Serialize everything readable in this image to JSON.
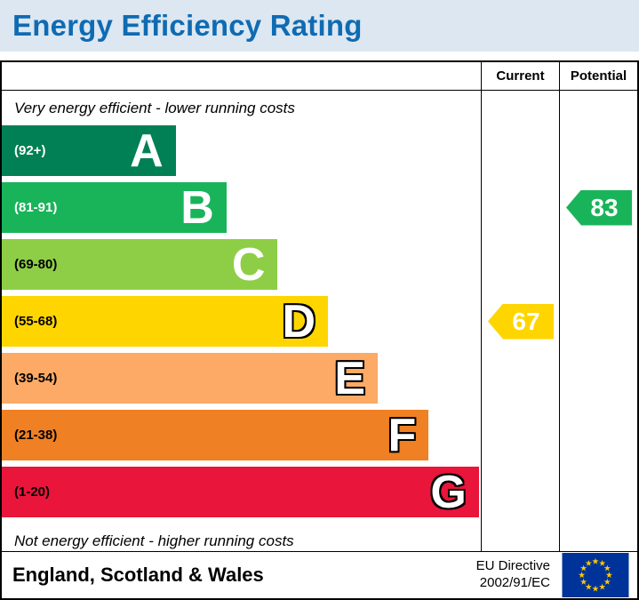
{
  "title": "Energy Efficiency Rating",
  "colors": {
    "title-text": "#0f6bb2",
    "title-bg": "#dce7f1",
    "border": "#000000",
    "flag-bg": "#003399",
    "flag-star": "#ffcc00"
  },
  "header": {
    "current_label": "Current",
    "potential_label": "Potential"
  },
  "notes": {
    "top": "Very energy efficient - lower running costs",
    "bottom": "Not energy efficient - higher running costs"
  },
  "chart_data": {
    "type": "bar",
    "title": "Energy Efficiency Rating",
    "bands": [
      {
        "letter": "A",
        "range": "(92+)",
        "min": 92,
        "max": 100,
        "color": "#008054",
        "label_color": "#ffffff",
        "outline": false,
        "width_pct": 36.3
      },
      {
        "letter": "B",
        "range": "(81-91)",
        "min": 81,
        "max": 91,
        "color": "#19b459",
        "label_color": "#ffffff",
        "outline": false,
        "width_pct": 46.9
      },
      {
        "letter": "C",
        "range": "(69-80)",
        "min": 69,
        "max": 80,
        "color": "#8dce46",
        "label_color": "#000000",
        "outline": false,
        "width_pct": 57.6
      },
      {
        "letter": "D",
        "range": "(55-68)",
        "min": 55,
        "max": 68,
        "color": "#ffd500",
        "label_color": "#000000",
        "outline": true,
        "width_pct": 68.1
      },
      {
        "letter": "E",
        "range": "(39-54)",
        "min": 39,
        "max": 54,
        "color": "#fcaa65",
        "label_color": "#000000",
        "outline": true,
        "width_pct": 78.5
      },
      {
        "letter": "F",
        "range": "(21-38)",
        "min": 21,
        "max": 38,
        "color": "#ef8023",
        "label_color": "#000000",
        "outline": true,
        "width_pct": 89.1
      },
      {
        "letter": "G",
        "range": "(1-20)",
        "min": 1,
        "max": 20,
        "color": "#e9153b",
        "label_color": "#000000",
        "outline": true,
        "width_pct": 99.6
      }
    ],
    "current": {
      "value": 67,
      "band": "D",
      "color": "#ffd500"
    },
    "potential": {
      "value": 83,
      "band": "B",
      "color": "#19b459"
    }
  },
  "footer": {
    "region": "England, Scotland & Wales",
    "directive_line1": "EU Directive",
    "directive_line2": "2002/91/EC"
  }
}
